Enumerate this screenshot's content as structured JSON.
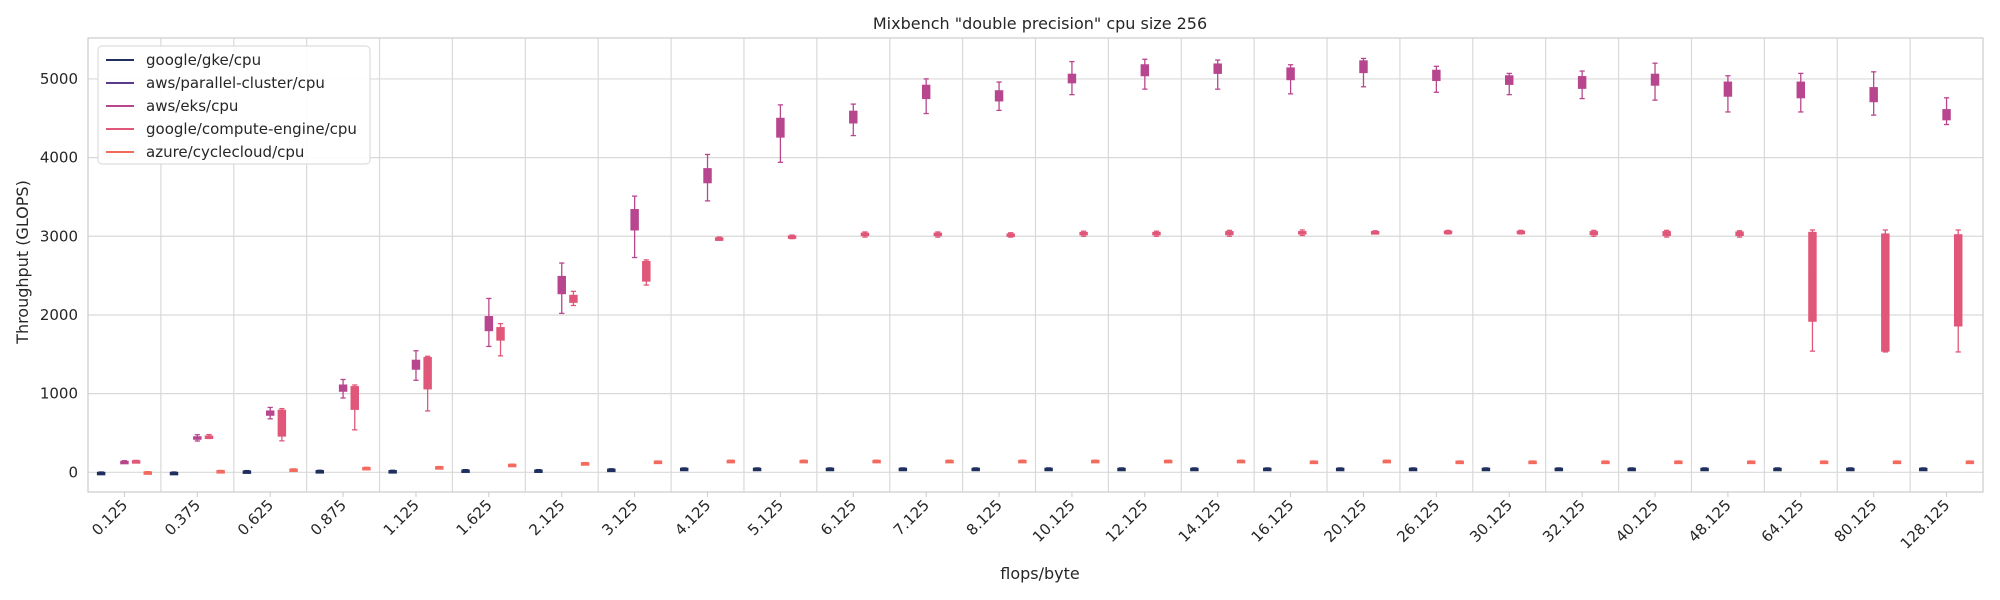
{
  "chart_data": {
    "type": "box",
    "title": "Mixbench \"double precision\" cpu size 256",
    "xlabel": "flops/byte",
    "ylabel": "Throughput (GLOPS)",
    "ylim": [
      -250,
      5520
    ],
    "yticks": [
      0,
      1000,
      2000,
      3000,
      4000,
      5000
    ],
    "grid": true,
    "legend_position": "top-left",
    "categories": [
      "0.125",
      "0.375",
      "0.625",
      "0.875",
      "1.125",
      "1.625",
      "2.125",
      "3.125",
      "4.125",
      "5.125",
      "6.125",
      "7.125",
      "8.125",
      "10.125",
      "12.125",
      "14.125",
      "16.125",
      "20.125",
      "26.125",
      "30.125",
      "32.125",
      "40.125",
      "48.125",
      "64.125",
      "80.125",
      "128.125"
    ],
    "series": [
      {
        "name": "google/gke/cpu",
        "color": "#1f2f5e",
        "boxes": [
          {
            "min": -10,
            "q1": -6,
            "median": -3,
            "q3": 0,
            "max": 4
          },
          {
            "min": -10,
            "q1": -6,
            "median": -3,
            "q3": 0,
            "max": 4
          },
          {
            "min": 8,
            "q1": 12,
            "median": 15,
            "q3": 18,
            "max": 22
          },
          {
            "min": 12,
            "q1": 16,
            "median": 19,
            "q3": 22,
            "max": 26
          },
          {
            "min": 12,
            "q1": 16,
            "median": 19,
            "q3": 22,
            "max": 26
          },
          {
            "min": 20,
            "q1": 24,
            "median": 27,
            "q3": 30,
            "max": 34
          },
          {
            "min": 20,
            "q1": 24,
            "median": 27,
            "q3": 30,
            "max": 34
          },
          {
            "min": 32,
            "q1": 36,
            "median": 38,
            "q3": 41,
            "max": 45
          },
          {
            "min": 42,
            "q1": 46,
            "median": 49,
            "q3": 52,
            "max": 56
          },
          {
            "min": 42,
            "q1": 46,
            "median": 49,
            "q3": 52,
            "max": 56
          },
          {
            "min": 42,
            "q1": 46,
            "median": 49,
            "q3": 52,
            "max": 56
          },
          {
            "min": 42,
            "q1": 46,
            "median": 49,
            "q3": 52,
            "max": 56
          },
          {
            "min": 42,
            "q1": 46,
            "median": 49,
            "q3": 52,
            "max": 56
          },
          {
            "min": 42,
            "q1": 46,
            "median": 49,
            "q3": 52,
            "max": 56
          },
          {
            "min": 42,
            "q1": 46,
            "median": 49,
            "q3": 52,
            "max": 56
          },
          {
            "min": 42,
            "q1": 46,
            "median": 49,
            "q3": 52,
            "max": 56
          },
          {
            "min": 42,
            "q1": 46,
            "median": 49,
            "q3": 52,
            "max": 56
          },
          {
            "min": 42,
            "q1": 46,
            "median": 49,
            "q3": 52,
            "max": 56
          },
          {
            "min": 42,
            "q1": 46,
            "median": 49,
            "q3": 52,
            "max": 56
          },
          {
            "min": 42,
            "q1": 46,
            "median": 49,
            "q3": 52,
            "max": 56
          },
          {
            "min": 42,
            "q1": 46,
            "median": 49,
            "q3": 52,
            "max": 56
          },
          {
            "min": 42,
            "q1": 46,
            "median": 49,
            "q3": 52,
            "max": 56
          },
          {
            "min": 42,
            "q1": 46,
            "median": 49,
            "q3": 52,
            "max": 56
          },
          {
            "min": 42,
            "q1": 46,
            "median": 49,
            "q3": 52,
            "max": 56
          },
          {
            "min": 42,
            "q1": 46,
            "median": 49,
            "q3": 52,
            "max": 56
          },
          {
            "min": 42,
            "q1": 46,
            "median": 49,
            "q3": 52,
            "max": 56
          }
        ]
      },
      {
        "name": "aws/parallel-cluster/cpu",
        "color": "#5b3c8c",
        "boxes": []
      },
      {
        "name": "aws/eks/cpu",
        "color": "#b8468f",
        "boxes": [
          {
            "min": 118,
            "q1": 126,
            "median": 133,
            "q3": 140,
            "max": 148
          },
          {
            "min": 398,
            "q1": 420,
            "median": 435,
            "q3": 452,
            "max": 478
          },
          {
            "min": 680,
            "q1": 725,
            "median": 755,
            "q3": 780,
            "max": 825
          },
          {
            "min": 945,
            "q1": 1030,
            "median": 1075,
            "q3": 1110,
            "max": 1180
          },
          {
            "min": 1170,
            "q1": 1310,
            "median": 1365,
            "q3": 1425,
            "max": 1545
          },
          {
            "min": 1600,
            "q1": 1800,
            "median": 1890,
            "q3": 1980,
            "max": 2210
          },
          {
            "min": 2020,
            "q1": 2270,
            "median": 2390,
            "q3": 2490,
            "max": 2660
          },
          {
            "min": 2730,
            "q1": 3080,
            "median": 3210,
            "q3": 3340,
            "max": 3510
          },
          {
            "min": 3450,
            "q1": 3680,
            "median": 3790,
            "q3": 3860,
            "max": 4040
          },
          {
            "min": 3940,
            "q1": 4260,
            "median": 4400,
            "q3": 4500,
            "max": 4670
          },
          {
            "min": 4280,
            "q1": 4440,
            "median": 4520,
            "q3": 4590,
            "max": 4680
          },
          {
            "min": 4560,
            "q1": 4750,
            "median": 4830,
            "q3": 4920,
            "max": 5000
          },
          {
            "min": 4600,
            "q1": 4720,
            "median": 4790,
            "q3": 4850,
            "max": 4960
          },
          {
            "min": 4800,
            "q1": 4950,
            "median": 5000,
            "q3": 5060,
            "max": 5220
          },
          {
            "min": 4870,
            "q1": 5040,
            "median": 5110,
            "q3": 5180,
            "max": 5250
          },
          {
            "min": 4870,
            "q1": 5070,
            "median": 5120,
            "q3": 5190,
            "max": 5240
          },
          {
            "min": 4810,
            "q1": 4990,
            "median": 5070,
            "q3": 5140,
            "max": 5180
          },
          {
            "min": 4900,
            "q1": 5080,
            "median": 5140,
            "q3": 5230,
            "max": 5260
          },
          {
            "min": 4830,
            "q1": 4980,
            "median": 5050,
            "q3": 5110,
            "max": 5160
          },
          {
            "min": 4800,
            "q1": 4930,
            "median": 4980,
            "q3": 5040,
            "max": 5070
          },
          {
            "min": 4750,
            "q1": 4880,
            "median": 4950,
            "q3": 5030,
            "max": 5100
          },
          {
            "min": 4730,
            "q1": 4920,
            "median": 4990,
            "q3": 5060,
            "max": 5200
          },
          {
            "min": 4580,
            "q1": 4780,
            "median": 4880,
            "q3": 4960,
            "max": 5040
          },
          {
            "min": 4580,
            "q1": 4760,
            "median": 4860,
            "q3": 4960,
            "max": 5070
          },
          {
            "min": 4540,
            "q1": 4710,
            "median": 4800,
            "q3": 4890,
            "max": 5090
          },
          {
            "min": 4420,
            "q1": 4480,
            "median": 4540,
            "q3": 4610,
            "max": 4760
          }
        ]
      },
      {
        "name": "google/compute-engine/cpu",
        "color": "#e05779",
        "boxes": [
          {
            "min": 136,
            "q1": 140,
            "median": 144,
            "q3": 148,
            "max": 152
          },
          {
            "min": 430,
            "q1": 445,
            "median": 455,
            "q3": 462,
            "max": 480
          },
          {
            "min": 400,
            "q1": 460,
            "median": 720,
            "q3": 790,
            "max": 810
          },
          {
            "min": 540,
            "q1": 800,
            "median": 1040,
            "q3": 1090,
            "max": 1110
          },
          {
            "min": 780,
            "q1": 1060,
            "median": 1370,
            "q3": 1460,
            "max": 1475
          },
          {
            "min": 1480,
            "q1": 1680,
            "median": 1760,
            "q3": 1840,
            "max": 1890
          },
          {
            "min": 2120,
            "q1": 2160,
            "median": 2200,
            "q3": 2250,
            "max": 2300
          },
          {
            "min": 2380,
            "q1": 2430,
            "median": 2640,
            "q3": 2680,
            "max": 2700
          },
          {
            "min": 2950,
            "q1": 2960,
            "median": 2970,
            "q3": 2980,
            "max": 2990
          },
          {
            "min": 2970,
            "q1": 2985,
            "median": 2995,
            "q3": 3005,
            "max": 3015
          },
          {
            "min": 2990,
            "q1": 3010,
            "median": 3025,
            "q3": 3040,
            "max": 3055
          },
          {
            "min": 2990,
            "q1": 3010,
            "median": 3025,
            "q3": 3040,
            "max": 3055
          },
          {
            "min": 2990,
            "q1": 3005,
            "median": 3015,
            "q3": 3030,
            "max": 3045
          },
          {
            "min": 3000,
            "q1": 3020,
            "median": 3035,
            "q3": 3050,
            "max": 3065
          },
          {
            "min": 3000,
            "q1": 3020,
            "median": 3035,
            "q3": 3050,
            "max": 3065
          },
          {
            "min": 3000,
            "q1": 3020,
            "median": 3040,
            "q3": 3060,
            "max": 3075
          },
          {
            "min": 3010,
            "q1": 3030,
            "median": 3045,
            "q3": 3060,
            "max": 3080
          },
          {
            "min": 3030,
            "q1": 3040,
            "median": 3050,
            "q3": 3060,
            "max": 3070
          },
          {
            "min": 3030,
            "q1": 3045,
            "median": 3055,
            "q3": 3065,
            "max": 3075
          },
          {
            "min": 3030,
            "q1": 3045,
            "median": 3055,
            "q3": 3065,
            "max": 3075
          },
          {
            "min": 3000,
            "q1": 3020,
            "median": 3040,
            "q3": 3060,
            "max": 3075
          },
          {
            "min": 2990,
            "q1": 3010,
            "median": 3030,
            "q3": 3060,
            "max": 3075
          },
          {
            "min": 2990,
            "q1": 3010,
            "median": 3030,
            "q3": 3055,
            "max": 3070
          },
          {
            "min": 1540,
            "q1": 1920,
            "median": 2500,
            "q3": 3050,
            "max": 3080
          },
          {
            "min": 1530,
            "q1": 1540,
            "median": 2400,
            "q3": 3030,
            "max": 3080
          },
          {
            "min": 1530,
            "q1": 1860,
            "median": 2500,
            "q3": 3020,
            "max": 3080
          }
        ]
      },
      {
        "name": "azure/cyclecloud/cpu",
        "color": "#f36a5e",
        "boxes": [
          {
            "min": 0,
            "q1": 2,
            "median": 4,
            "q3": 6,
            "max": 8
          },
          {
            "min": 16,
            "q1": 18,
            "median": 20,
            "q3": 22,
            "max": 24
          },
          {
            "min": 36,
            "q1": 38,
            "median": 40,
            "q3": 42,
            "max": 44
          },
          {
            "min": 56,
            "q1": 58,
            "median": 60,
            "q3": 62,
            "max": 64
          },
          {
            "min": 66,
            "q1": 68,
            "median": 70,
            "q3": 72,
            "max": 74
          },
          {
            "min": 96,
            "q1": 98,
            "median": 100,
            "q3": 102,
            "max": 104
          },
          {
            "min": 116,
            "q1": 118,
            "median": 120,
            "q3": 122,
            "max": 124
          },
          {
            "min": 136,
            "q1": 138,
            "median": 140,
            "q3": 142,
            "max": 144
          },
          {
            "min": 146,
            "q1": 148,
            "median": 150,
            "q3": 152,
            "max": 154
          },
          {
            "min": 146,
            "q1": 148,
            "median": 150,
            "q3": 152,
            "max": 154
          },
          {
            "min": 146,
            "q1": 148,
            "median": 150,
            "q3": 152,
            "max": 154
          },
          {
            "min": 146,
            "q1": 148,
            "median": 150,
            "q3": 152,
            "max": 154
          },
          {
            "min": 146,
            "q1": 148,
            "median": 150,
            "q3": 152,
            "max": 154
          },
          {
            "min": 146,
            "q1": 148,
            "median": 150,
            "q3": 152,
            "max": 154
          },
          {
            "min": 146,
            "q1": 148,
            "median": 150,
            "q3": 152,
            "max": 154
          },
          {
            "min": 146,
            "q1": 148,
            "median": 150,
            "q3": 152,
            "max": 154
          },
          {
            "min": 136,
            "q1": 138,
            "median": 140,
            "q3": 142,
            "max": 144
          },
          {
            "min": 146,
            "q1": 148,
            "median": 150,
            "q3": 152,
            "max": 154
          },
          {
            "min": 136,
            "q1": 138,
            "median": 140,
            "q3": 142,
            "max": 144
          },
          {
            "min": 136,
            "q1": 138,
            "median": 140,
            "q3": 142,
            "max": 144
          },
          {
            "min": 136,
            "q1": 138,
            "median": 140,
            "q3": 142,
            "max": 144
          },
          {
            "min": 136,
            "q1": 138,
            "median": 140,
            "q3": 142,
            "max": 144
          },
          {
            "min": 136,
            "q1": 138,
            "median": 140,
            "q3": 142,
            "max": 144
          },
          {
            "min": 136,
            "q1": 138,
            "median": 140,
            "q3": 142,
            "max": 144
          },
          {
            "min": 136,
            "q1": 138,
            "median": 140,
            "q3": 142,
            "max": 144
          },
          {
            "min": 136,
            "q1": 138,
            "median": 140,
            "q3": 142,
            "max": 144
          }
        ]
      }
    ]
  }
}
